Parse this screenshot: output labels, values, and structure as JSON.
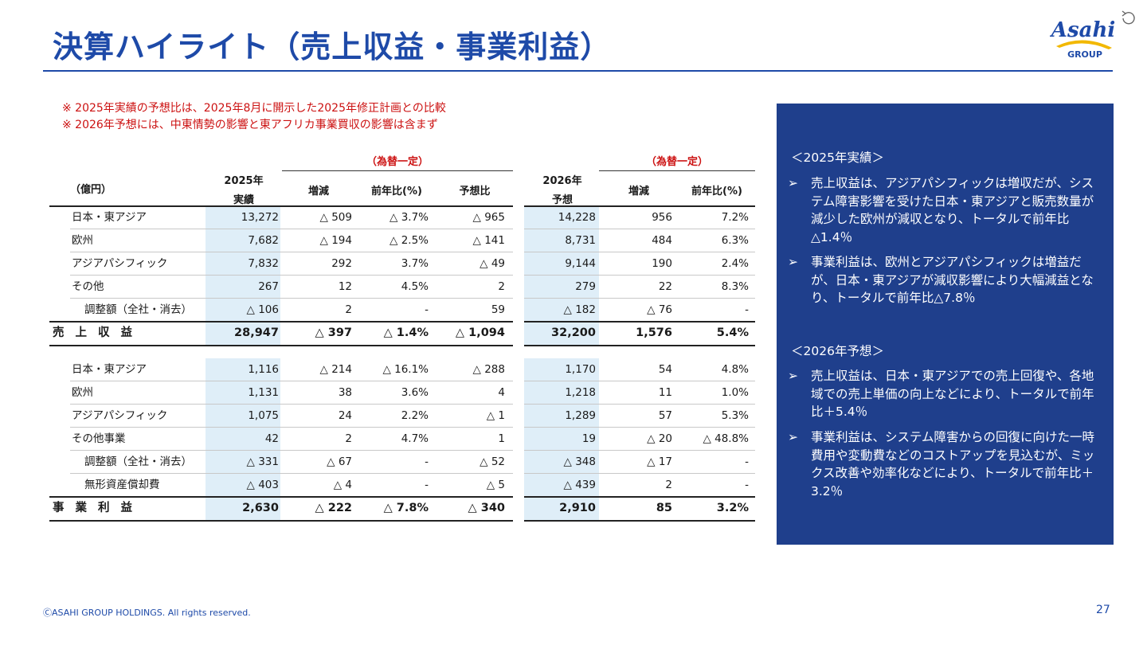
{
  "title": "決算ハイライト（売上収益・事業利益）",
  "logo": {
    "brand": "Asahi",
    "sub": "GROUP"
  },
  "notes": [
    "※ 2025年実績の予想比は、2025年8月に開示した2025年修正計画との比較",
    "※ 2026年予想には、中東情勢の影響と東アフリカ事業買収の影響は含まず"
  ],
  "table": {
    "fx_label_1": "（為替一定）",
    "fx_label_2": "（為替一定）",
    "unit": "（億円）",
    "h_2025_a": "2025年",
    "h_2025_b": "実績",
    "h_inc1": "増減",
    "h_yoy1": "前年比(%)",
    "h_vsf": "予想比",
    "h_2026_a": "2026年",
    "h_2026_b": "予想",
    "h_inc2": "増減",
    "h_yoy2": "前年比(%)",
    "revenue_rows": [
      {
        "label": "日本・東アジア",
        "a25": "13,272",
        "inc1": "△ 509",
        "yoy1": "△ 3.7%",
        "vsf": "△ 965",
        "f26": "14,228",
        "inc2": "956",
        "yoy2": "7.2%"
      },
      {
        "label": "欧州",
        "a25": "7,682",
        "inc1": "△ 194",
        "yoy1": "△ 2.5%",
        "vsf": "△ 141",
        "f26": "8,731",
        "inc2": "484",
        "yoy2": "6.3%"
      },
      {
        "label": "アジアパシフィック",
        "a25": "7,832",
        "inc1": "292",
        "yoy1": "3.7%",
        "vsf": "△ 49",
        "f26": "9,144",
        "inc2": "190",
        "yoy2": "2.4%"
      },
      {
        "label": "その他",
        "a25": "267",
        "inc1": "12",
        "yoy1": "4.5%",
        "vsf": "2",
        "f26": "279",
        "inc2": "22",
        "yoy2": "8.3%"
      },
      {
        "label": "調整額（全社・消去）",
        "a25": "△ 106",
        "inc1": "2",
        "yoy1": "-",
        "vsf": "59",
        "f26": "△ 182",
        "inc2": "△ 76",
        "yoy2": "-"
      }
    ],
    "revenue_total": {
      "label": "売上収益",
      "a25": "28,947",
      "inc1": "△ 397",
      "yoy1": "△ 1.4%",
      "vsf": "△ 1,094",
      "f26": "32,200",
      "inc2": "1,576",
      "yoy2": "5.4%"
    },
    "profit_rows": [
      {
        "label": "日本・東アジア",
        "a25": "1,116",
        "inc1": "△ 214",
        "yoy1": "△ 16.1%",
        "vsf": "△ 288",
        "f26": "1,170",
        "inc2": "54",
        "yoy2": "4.8%"
      },
      {
        "label": "欧州",
        "a25": "1,131",
        "inc1": "38",
        "yoy1": "3.6%",
        "vsf": "4",
        "f26": "1,218",
        "inc2": "11",
        "yoy2": "1.0%"
      },
      {
        "label": "アジアパシフィック",
        "a25": "1,075",
        "inc1": "24",
        "yoy1": "2.2%",
        "vsf": "△ 1",
        "f26": "1,289",
        "inc2": "57",
        "yoy2": "5.3%"
      },
      {
        "label": "その他事業",
        "a25": "42",
        "inc1": "2",
        "yoy1": "4.7%",
        "vsf": "1",
        "f26": "19",
        "inc2": "△ 20",
        "yoy2": "△ 48.8%"
      },
      {
        "label": "調整額（全社・消去）",
        "a25": "△ 331",
        "inc1": "△ 67",
        "yoy1": "-",
        "vsf": "△ 52",
        "f26": "△ 348",
        "inc2": "△ 17",
        "yoy2": "-"
      },
      {
        "label": "無形資産償却費",
        "a25": "△ 403",
        "inc1": "△ 4",
        "yoy1": "-",
        "vsf": "△ 5",
        "f26": "△ 439",
        "inc2": "2",
        "yoy2": "-"
      }
    ],
    "profit_total": {
      "label": "事業利益",
      "a25": "2,630",
      "inc1": "△ 222",
      "yoy1": "△ 7.8%",
      "vsf": "△ 340",
      "f26": "2,910",
      "inc2": "85",
      "yoy2": "3.2%"
    }
  },
  "panel": {
    "sec1": "＜2025年実績＞",
    "sec1_bullets": [
      "売上収益は、アジアパシフィックは増収だが、システム障害影響を受けた日本・東アジアと販売数量が減少した欧州が減収となり、トータルで前年比△1.4％",
      "事業利益は、欧州とアジアパシフィックは増益だが、日本・東アジアが減収影響により大幅減益となり、トータルで前年比△7.8％"
    ],
    "sec2": "＜2026年予想＞",
    "sec2_bullets": [
      "売上収益は、日本・東アジアでの売上回復や、各地域での売上単価の向上などにより、トータルで前年比＋5.4％",
      "事業利益は、システム障害からの回復に向けた一時費用や変動費などのコストアップを見込むが、ミックス改善や効率化などにより、トータルで前年比＋3.2％"
    ],
    "bullet_mark": "➢"
  },
  "footer": "ⒸASAHI GROUP HOLDINGS. All rights reserved.",
  "page_number": "27",
  "colors": {
    "brand_blue": "#1e4aa8",
    "panel": "#1f3f8c",
    "highlight": "#dfeef8",
    "note_red": "#cc1111",
    "logo_gold": "#f2b800"
  },
  "icons": [
    "reload-icon"
  ]
}
